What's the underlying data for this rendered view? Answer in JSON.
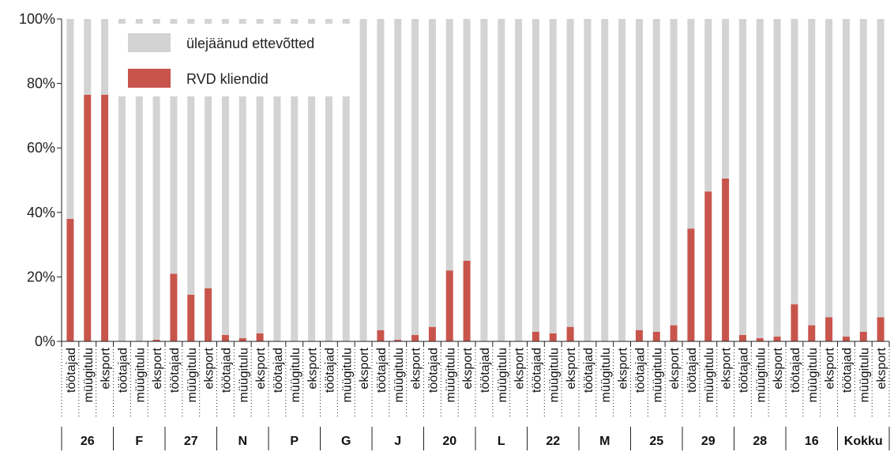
{
  "chart_data": {
    "type": "bar",
    "stacked": true,
    "ylim": [
      0,
      100
    ],
    "yticks": [
      "0%",
      "20%",
      "40%",
      "60%",
      "80%",
      "100%"
    ],
    "categories": [
      "töötajad",
      "müügitulu",
      "eksport",
      "töötajad",
      "müügitulu",
      "eksport",
      "töötajad",
      "müügitulu",
      "eksport",
      "töötajad",
      "müügitulu",
      "eksport",
      "töötajad",
      "müügitulu",
      "eksport",
      "töötajad",
      "müügitulu",
      "eksport",
      "töötajad",
      "müügitulu",
      "eksport",
      "töötajad",
      "müügitulu",
      "eksport",
      "töötajad",
      "müügitulu",
      "eksport",
      "töötajad",
      "müügitulu",
      "eksport",
      "töötajad",
      "müügitulu",
      "eksport",
      "töötajad",
      "müügitulu",
      "eksport",
      "töötajad",
      "müügitulu",
      "eksport",
      "töötajad",
      "müügitulu",
      "eksport",
      "töötajad",
      "müügitulu",
      "eksport",
      "töötajad",
      "müügitulu",
      "eksport"
    ],
    "groups": [
      "26",
      "F",
      "27",
      "N",
      "P",
      "G",
      "J",
      "20",
      "L",
      "22",
      "M",
      "25",
      "29",
      "28",
      "16",
      "Kokku"
    ],
    "series": [
      {
        "name": "RVD kliendid",
        "color": "#c8554c",
        "values": [
          38,
          76.5,
          76.5,
          0,
          0,
          0.5,
          21,
          14.5,
          16.5,
          2,
          1,
          2.5,
          0,
          0,
          0,
          0,
          0,
          0,
          3.5,
          0.5,
          2,
          4.5,
          22,
          25,
          0,
          0,
          0,
          3,
          2.5,
          4.5,
          0,
          0,
          0,
          3.5,
          3,
          5,
          35,
          46.5,
          50.5,
          2,
          1,
          1.5,
          11.5,
          5,
          7.5,
          1.5,
          3,
          7.5
        ]
      },
      {
        "name": "ülejäänud ettevõtted",
        "color": "#d3d3d3",
        "values": [
          62,
          23.5,
          23.5,
          100,
          100,
          99.5,
          79,
          85.5,
          83.5,
          98,
          99,
          97.5,
          100,
          100,
          100,
          100,
          100,
          100,
          96.5,
          99.5,
          98,
          95.5,
          78,
          75,
          100,
          100,
          100,
          97,
          97.5,
          95.5,
          100,
          100,
          100,
          96.5,
          97,
          95,
          65,
          53.5,
          49.5,
          98,
          99,
          98.5,
          88.5,
          95,
          92.5,
          98.5,
          97,
          92.5
        ]
      }
    ],
    "legend": [
      {
        "label": "ülejäänud ettevõtted",
        "color": "#d3d3d3"
      },
      {
        "label": "RVD kliendid",
        "color": "#c8554c"
      }
    ],
    "legend_position": "top-left",
    "grid": false
  }
}
